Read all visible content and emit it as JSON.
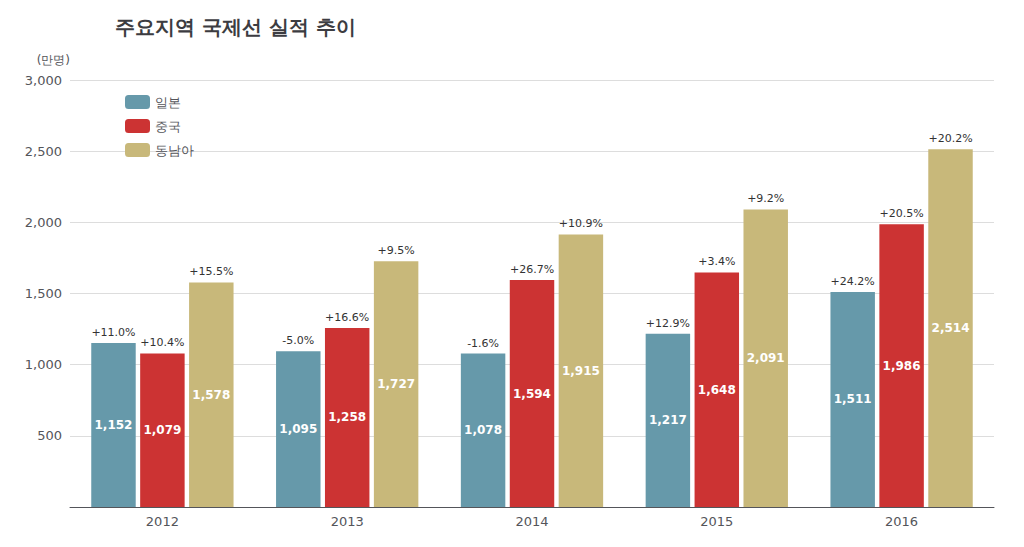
{
  "chart_data": {
    "type": "bar",
    "title": "주요지역 국제선 실적 추이",
    "ylabel": "(만명)",
    "categories": [
      "2012",
      "2013",
      "2014",
      "2015",
      "2016"
    ],
    "series": [
      {
        "name": "일본",
        "color": "#6699aa",
        "values": [
          1152,
          1095,
          1078,
          1217,
          1511
        ],
        "value_labels": [
          "1,152",
          "1,095",
          "1,078",
          "1,217",
          "1,511"
        ],
        "growth": [
          "+11.0%",
          "-5.0%",
          "-1.6%",
          "+12.9%",
          "+24.2%"
        ]
      },
      {
        "name": "중국",
        "color": "#cc3333",
        "values": [
          1079,
          1258,
          1594,
          1648,
          1986
        ],
        "value_labels": [
          "1,079",
          "1,258",
          "1,594",
          "1,648",
          "1,986"
        ],
        "growth": [
          "+10.4%",
          "+16.6%",
          "+26.7%",
          "+3.4%",
          "+20.5%"
        ]
      },
      {
        "name": "동남아",
        "color": "#c8b87a",
        "values": [
          1578,
          1727,
          1915,
          2091,
          2514
        ],
        "value_labels": [
          "1,578",
          "1,727",
          "1,915",
          "2,091",
          "2,514"
        ],
        "growth": [
          "+15.5%",
          "+9.5%",
          "+10.9%",
          "+9.2%",
          "+20.2%"
        ]
      }
    ],
    "ylim": [
      0,
      3000
    ],
    "yticks": [
      500,
      {
        "value": 1000,
        "label": "1,000"
      },
      {
        "value": 1500,
        "label": "1,500"
      },
      {
        "value": 2000,
        "label": "2,000"
      },
      {
        "value": 2500,
        "label": "2,500"
      },
      {
        "value": 3000,
        "label": "3,000"
      }
    ],
    "grid": true,
    "legend": "upper left",
    "data_labels": true
  }
}
